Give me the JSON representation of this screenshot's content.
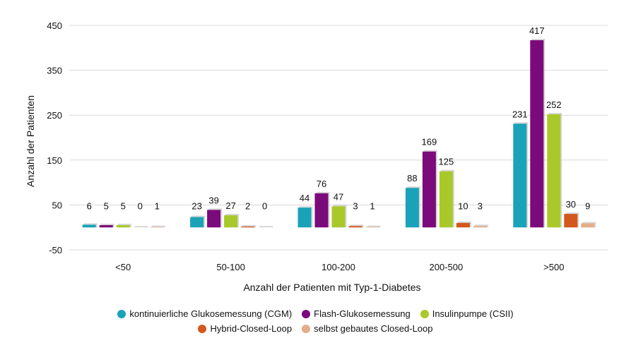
{
  "chart_data": {
    "type": "bar",
    "categories": [
      "<50",
      "50-100",
      "100-200",
      "200-500",
      ">500"
    ],
    "series": [
      {
        "name": "kontinuierliche Glukosemessung (CGM)",
        "color": "#1aa3b8",
        "values": [
          6,
          23,
          44,
          88,
          231
        ]
      },
      {
        "name": "Flash-Glukosemessung",
        "color": "#7b0a7b",
        "values": [
          5,
          39,
          76,
          169,
          417
        ]
      },
      {
        "name": "Insulinpumpe (CSII)",
        "color": "#a9c92a",
        "values": [
          5,
          27,
          47,
          125,
          252
        ]
      },
      {
        "name": "Hybrid-Closed-Loop",
        "color": "#d3571f",
        "values": [
          0,
          2,
          3,
          10,
          30
        ]
      },
      {
        "name": "selbst gebautes Closed-Loop",
        "color": "#e2ad87",
        "values": [
          1,
          0,
          1,
          3,
          9
        ]
      }
    ],
    "title": "",
    "xlabel": "Anzahl der Patienten mit Typ-1-Diabetes",
    "ylabel": "Anzahl der Patienten",
    "ylim": [
      -50,
      450
    ],
    "yticks": [
      450,
      350,
      250,
      150,
      50,
      -50
    ],
    "grid": true,
    "legend_position": "bottom"
  }
}
